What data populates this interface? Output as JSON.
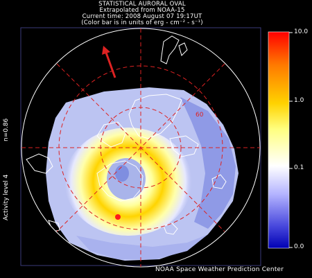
{
  "header": {
    "line1": "STATISTICAL AURORAL OVAL",
    "line2": "Extrapolated from NOAA-15",
    "line3": "Current time: 2008 August 07 19:17UT",
    "line4": "(Color bar is in units of erg - cm⁻² - s⁻¹)"
  },
  "side": {
    "n_label": "n=0.86",
    "activity_label": "Activity level 4"
  },
  "colorbar": {
    "labels": [
      "10.0",
      "1.0",
      "0.1",
      "0.0"
    ],
    "colors": [
      "#ff0000",
      "#ff7800",
      "#ffd200",
      "#ffff64",
      "#ffffff",
      "#a0a0ff",
      "#4646dc",
      "#0000b4"
    ]
  },
  "map": {
    "latitude_label": "60",
    "sun_arrow_color": "#dd2222",
    "oval_color": "#ffe000",
    "grid_color": "#dd2222"
  },
  "footer": {
    "credit": "NOAA Space Weather Prediction Center"
  }
}
